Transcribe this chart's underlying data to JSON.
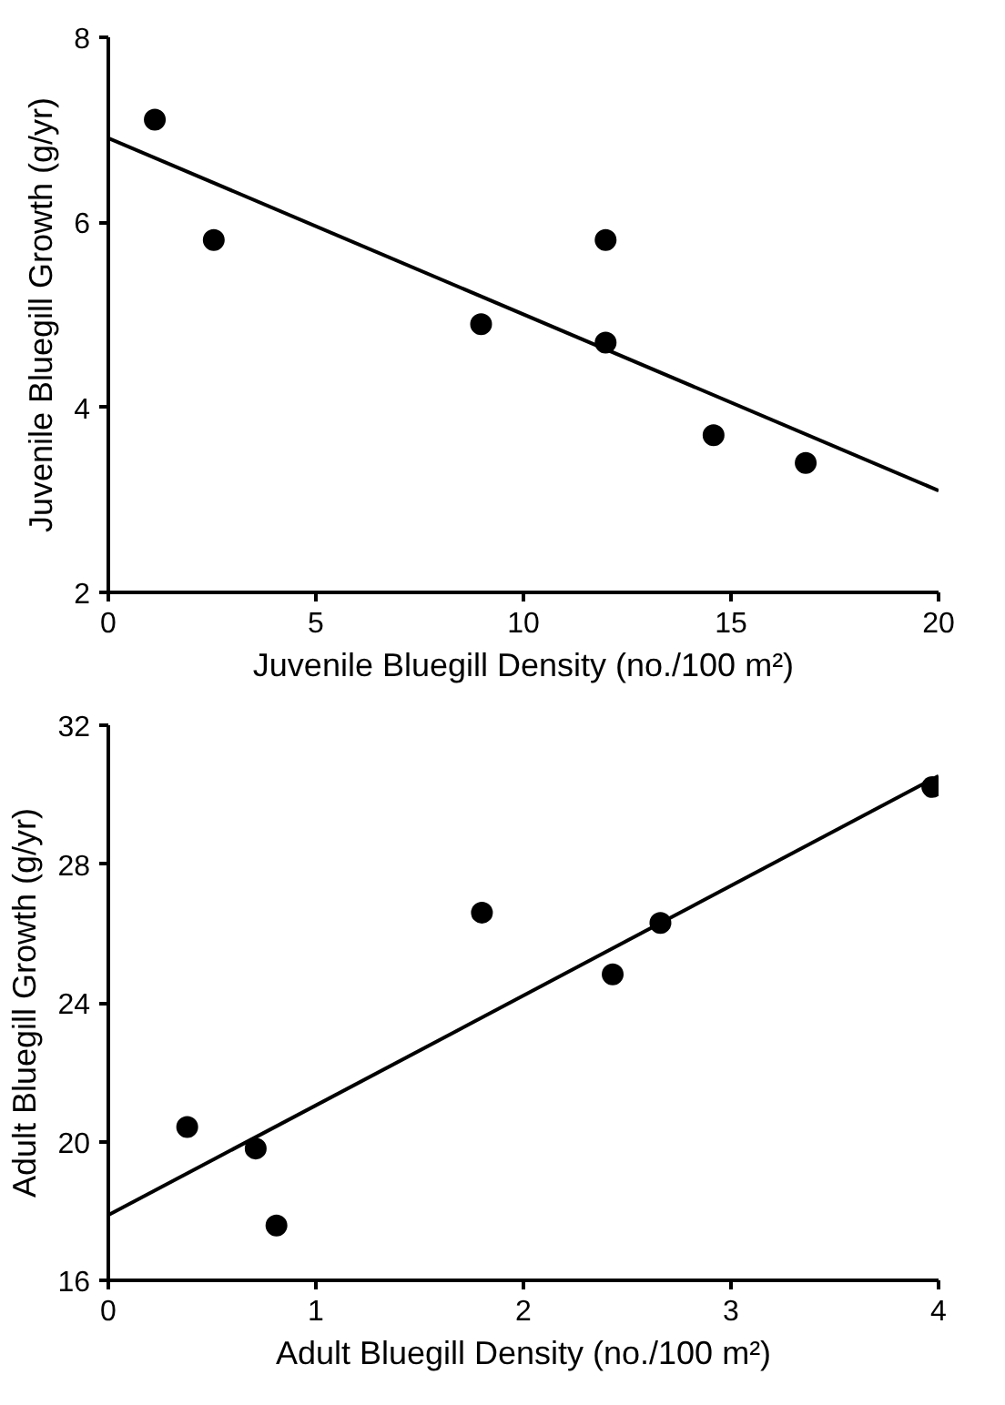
{
  "chart_data": [
    {
      "type": "scatter",
      "xlabel": "Juvenile Bluegill Density (no./100 m²)",
      "ylabel": "Juvenile Bluegill Growth (g/yr)",
      "xlim": [
        0,
        20
      ],
      "ylim": [
        2,
        8
      ],
      "xticks": [
        0,
        5,
        10,
        15,
        20
      ],
      "yticks": [
        2,
        4,
        6,
        8
      ],
      "grid": false,
      "series": [
        {
          "marker": "circle",
          "color": "#000000",
          "x": [
            1.12,
            2.54,
            8.98,
            11.98,
            11.98,
            14.58,
            16.8
          ],
          "values": [
            7.11,
            5.81,
            4.9,
            5.81,
            4.7,
            3.7,
            3.4
          ]
        },
        {
          "type": "line",
          "color": "#000000",
          "x": [
            0,
            20
          ],
          "values": [
            6.91,
            3.1
          ]
        }
      ]
    },
    {
      "type": "scatter",
      "xlabel": "Adult Bluegill Density (no./100 m²)",
      "ylabel": "Adult Bluegill Growth (g/yr)",
      "xlim": [
        0,
        4
      ],
      "ylim": [
        16,
        32
      ],
      "xticks": [
        0,
        1,
        2,
        3,
        4
      ],
      "yticks": [
        16,
        20,
        24,
        28,
        32
      ],
      "grid": false,
      "series": [
        {
          "marker": "circle",
          "color": "#000000",
          "x": [
            0.38,
            0.71,
            0.81,
            1.8,
            2.43,
            2.66,
            3.97
          ],
          "values": [
            20.42,
            19.8,
            17.58,
            26.6,
            24.82,
            26.3,
            30.22
          ]
        },
        {
          "type": "line",
          "color": "#000000",
          "x": [
            0,
            4
          ],
          "values": [
            17.88,
            30.54
          ]
        }
      ]
    }
  ]
}
